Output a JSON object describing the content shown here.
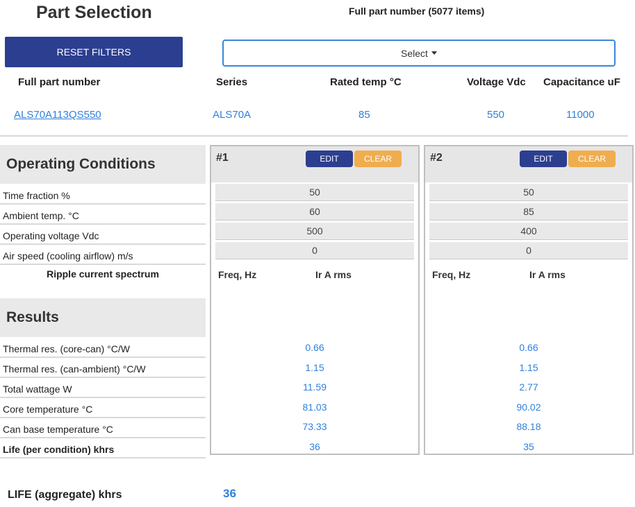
{
  "header": {
    "title": "Part Selection",
    "count_title": "Full part number (5077 items)",
    "reset_label": "RESET FILTERS",
    "select_label": "Select"
  },
  "table": {
    "columns": [
      "Full part number",
      "Series",
      "Rated temp °C",
      "Voltage Vdc",
      "Capacitance uF"
    ],
    "row": [
      "ALS70A113QS550",
      "ALS70A",
      "85",
      "550",
      "11000"
    ]
  },
  "operating": {
    "title": "Operating Conditions",
    "labels": [
      "Time fraction %",
      "Ambient temp. °C",
      "Operating voltage Vdc",
      "Air speed (cooling airflow) m/s"
    ],
    "ripple_label": "Ripple current spectrum"
  },
  "results": {
    "title": "Results",
    "labels": [
      "Thermal res. (core-can) °C/W",
      "Thermal res. (can-ambient) °C/W",
      "Total wattage W",
      "Core temperature °C",
      "Can base temperature °C",
      "Life (per condition) khrs"
    ]
  },
  "conditions": [
    {
      "id": "#1",
      "edit_label": "EDIT",
      "clear_label": "CLEAR",
      "inputs": [
        "50",
        "60",
        "500",
        "0"
      ],
      "freq_label": "Freq, Hz",
      "ir_label": "Ir A rms",
      "results": [
        "0.66",
        "1.15",
        "11.59",
        "81.03",
        "73.33",
        "36"
      ]
    },
    {
      "id": "#2",
      "edit_label": "EDIT",
      "clear_label": "CLEAR",
      "inputs": [
        "50",
        "85",
        "400",
        "0"
      ],
      "freq_label": "Freq, Hz",
      "ir_label": "Ir A rms",
      "results": [
        "0.66",
        "1.15",
        "2.77",
        "90.02",
        "88.18",
        "35"
      ]
    }
  ],
  "aggregate": {
    "label": "LIFE (aggregate) khrs",
    "value": "36"
  },
  "colors": {
    "primary": "#2c3e8f",
    "warning": "#f0ad4e",
    "link": "#2f7fdb",
    "panel": "#e9e9e9"
  }
}
